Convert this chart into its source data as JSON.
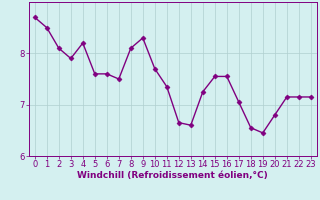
{
  "x": [
    0,
    1,
    2,
    3,
    4,
    5,
    6,
    7,
    8,
    9,
    10,
    11,
    12,
    13,
    14,
    15,
    16,
    17,
    18,
    19,
    20,
    21,
    22,
    23
  ],
  "y": [
    8.7,
    8.5,
    8.1,
    7.9,
    8.2,
    7.6,
    7.6,
    7.5,
    8.1,
    8.3,
    7.7,
    7.35,
    6.65,
    6.6,
    7.25,
    7.55,
    7.55,
    7.05,
    6.55,
    6.45,
    6.8,
    7.15,
    7.15,
    7.15
  ],
  "line_color": "#800080",
  "marker": "D",
  "marker_size": 2.5,
  "background_color": "#d4f0f0",
  "grid_color": "#b0d0d0",
  "xlabel": "Windchill (Refroidissement éolien,°C)",
  "ylabel": "",
  "ylim": [
    6.0,
    9.0
  ],
  "xlim": [
    -0.5,
    23.5
  ],
  "yticks": [
    6,
    7,
    8
  ],
  "xticks": [
    0,
    1,
    2,
    3,
    4,
    5,
    6,
    7,
    8,
    9,
    10,
    11,
    12,
    13,
    14,
    15,
    16,
    17,
    18,
    19,
    20,
    21,
    22,
    23
  ],
  "xlabel_fontsize": 6.5,
  "tick_fontsize": 6,
  "line_width": 1.0
}
